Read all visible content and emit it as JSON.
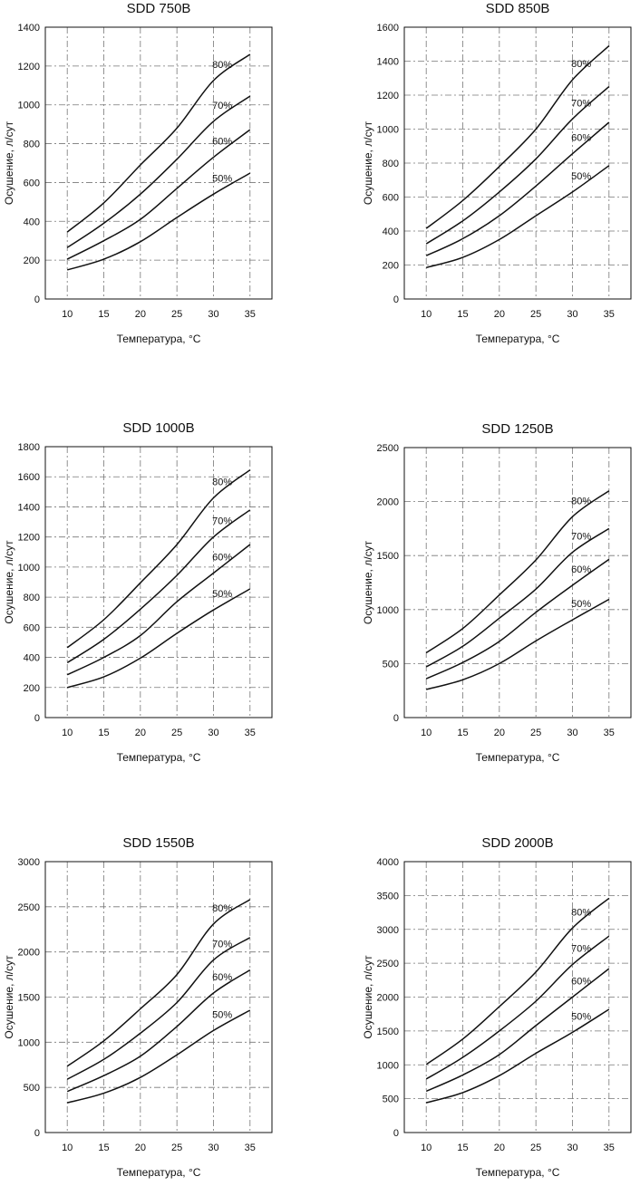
{
  "chart_data": [
    {
      "type": "line",
      "title": "SDD 750B",
      "xlabel": "Температура, °C",
      "ylabel": "Осушение, л/сут",
      "xlim": [
        7,
        38
      ],
      "xticks": [
        10,
        15,
        20,
        25,
        30,
        35
      ],
      "ylim": [
        0,
        1400
      ],
      "yticks": [
        0,
        200,
        400,
        600,
        800,
        1000,
        1200,
        1400
      ],
      "grid": true,
      "x": [
        10,
        15,
        20,
        25,
        30,
        35
      ],
      "series": [
        {
          "name": "50%",
          "values": [
            150,
            205,
            295,
            420,
            540,
            648
          ]
        },
        {
          "name": "60%",
          "values": [
            205,
            300,
            410,
            570,
            730,
            872
          ]
        },
        {
          "name": "70%",
          "values": [
            265,
            390,
            540,
            720,
            915,
            1045
          ]
        },
        {
          "name": "80%",
          "values": [
            345,
            495,
            690,
            880,
            1125,
            1260
          ]
        }
      ]
    },
    {
      "type": "line",
      "title": "SDD 850B",
      "xlabel": "Температура, °C",
      "ylabel": "Осушение, л/сут",
      "xlim": [
        7,
        38
      ],
      "xticks": [
        10,
        15,
        20,
        25,
        30,
        35
      ],
      "ylim": [
        0,
        1600
      ],
      "yticks": [
        0,
        200,
        400,
        600,
        800,
        1000,
        1200,
        1400,
        1600
      ],
      "grid": true,
      "x": [
        10,
        15,
        20,
        25,
        30,
        35
      ],
      "series": [
        {
          "name": "50%",
          "values": [
            185,
            245,
            350,
            490,
            630,
            785
          ]
        },
        {
          "name": "60%",
          "values": [
            255,
            355,
            490,
            665,
            855,
            1040
          ]
        },
        {
          "name": "70%",
          "values": [
            325,
            460,
            630,
            825,
            1060,
            1250
          ]
        },
        {
          "name": "80%",
          "values": [
            415,
            580,
            780,
            1000,
            1290,
            1490
          ]
        }
      ]
    },
    {
      "type": "line",
      "title": "SDD 1000B",
      "xlabel": "Температура, °C",
      "ylabel": "Осушение, л/сут",
      "xlim": [
        7,
        38
      ],
      "xticks": [
        10,
        15,
        20,
        25,
        30,
        35
      ],
      "ylim": [
        0,
        1800
      ],
      "yticks": [
        0,
        200,
        400,
        600,
        800,
        1000,
        1200,
        1400,
        1600,
        1800
      ],
      "grid": true,
      "x": [
        10,
        15,
        20,
        25,
        30,
        35
      ],
      "series": [
        {
          "name": "50%",
          "values": [
            200,
            270,
            395,
            560,
            715,
            855
          ]
        },
        {
          "name": "60%",
          "values": [
            285,
            400,
            545,
            770,
            960,
            1150
          ]
        },
        {
          "name": "70%",
          "values": [
            365,
            520,
            720,
            945,
            1200,
            1380
          ]
        },
        {
          "name": "80%",
          "values": [
            465,
            650,
            895,
            1150,
            1460,
            1645
          ]
        }
      ]
    },
    {
      "type": "line",
      "title": "SDD 1250B",
      "xlabel": "Температура, °C",
      "ylabel": "Осушение, л/сут",
      "xlim": [
        7,
        38
      ],
      "xticks": [
        10,
        15,
        20,
        25,
        30,
        35
      ],
      "ylim": [
        0,
        2500
      ],
      "yticks": [
        0,
        500,
        1000,
        1500,
        2000,
        2500
      ],
      "grid": true,
      "x": [
        10,
        15,
        20,
        25,
        30,
        35
      ],
      "series": [
        {
          "name": "50%",
          "values": [
            260,
            350,
            500,
            710,
            905,
            1095
          ]
        },
        {
          "name": "60%",
          "values": [
            360,
            510,
            705,
            975,
            1225,
            1465
          ]
        },
        {
          "name": "70%",
          "values": [
            470,
            660,
            920,
            1190,
            1530,
            1750
          ]
        },
        {
          "name": "80%",
          "values": [
            600,
            825,
            1135,
            1460,
            1860,
            2100
          ]
        }
      ]
    },
    {
      "type": "line",
      "title": "SDD 1550B",
      "xlabel": "Температура, °C",
      "ylabel": "Осушение, л/сут",
      "xlim": [
        7,
        38
      ],
      "xticks": [
        10,
        15,
        20,
        25,
        30,
        35
      ],
      "ylim": [
        0,
        3000
      ],
      "yticks": [
        0,
        500,
        1000,
        1500,
        2000,
        2500,
        3000
      ],
      "grid": true,
      "x": [
        10,
        15,
        20,
        25,
        30,
        35
      ],
      "series": [
        {
          "name": "50%",
          "values": [
            330,
            435,
            610,
            860,
            1130,
            1355
          ]
        },
        {
          "name": "60%",
          "values": [
            455,
            630,
            845,
            1175,
            1545,
            1800
          ]
        },
        {
          "name": "70%",
          "values": [
            590,
            810,
            1100,
            1440,
            1910,
            2160
          ]
        },
        {
          "name": "80%",
          "values": [
            735,
            1015,
            1370,
            1750,
            2310,
            2580
          ]
        }
      ]
    },
    {
      "type": "line",
      "title": "SDD 2000B",
      "xlabel": "Температура, °C",
      "ylabel": "Осушение, л/сут",
      "xlim": [
        7,
        38
      ],
      "xticks": [
        10,
        15,
        20,
        25,
        30,
        35
      ],
      "ylim": [
        0,
        4000
      ],
      "yticks": [
        0,
        500,
        1000,
        1500,
        2000,
        2500,
        3000,
        3500,
        4000
      ],
      "grid": true,
      "x": [
        10,
        15,
        20,
        25,
        30,
        35
      ],
      "series": [
        {
          "name": "50%",
          "values": [
            440,
            590,
            840,
            1170,
            1480,
            1820
          ]
        },
        {
          "name": "60%",
          "values": [
            610,
            850,
            1150,
            1580,
            2000,
            2420
          ]
        },
        {
          "name": "70%",
          "values": [
            790,
            1110,
            1500,
            1940,
            2480,
            2900
          ]
        },
        {
          "name": "80%",
          "values": [
            1005,
            1380,
            1860,
            2370,
            3020,
            3460
          ]
        }
      ]
    }
  ]
}
